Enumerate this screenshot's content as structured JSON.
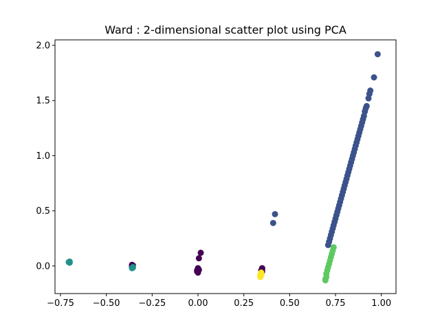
{
  "chart_data": {
    "type": "scatter",
    "title": "Ward : 2-dimensional scatter plot using PCA",
    "xlabel": "",
    "ylabel": "",
    "xlim": [
      -0.78,
      1.08
    ],
    "ylim": [
      -0.25,
      2.05
    ],
    "grid": false,
    "legend": "none",
    "x_ticks": [
      {
        "value": -0.75,
        "label": "−0.75"
      },
      {
        "value": -0.5,
        "label": "−0.50"
      },
      {
        "value": -0.25,
        "label": "−0.25"
      },
      {
        "value": 0.0,
        "label": "0.00"
      },
      {
        "value": 0.25,
        "label": "0.25"
      },
      {
        "value": 0.5,
        "label": "0.50"
      },
      {
        "value": 0.75,
        "label": "0.75"
      },
      {
        "value": 1.0,
        "label": "1.00"
      }
    ],
    "y_ticks": [
      {
        "value": 0.0,
        "label": "0.0"
      },
      {
        "value": 0.5,
        "label": "0.5"
      },
      {
        "value": 1.0,
        "label": "1.0"
      },
      {
        "value": 1.5,
        "label": "1.5"
      },
      {
        "value": 2.0,
        "label": "2.0"
      }
    ],
    "series": [
      {
        "color": "#440154",
        "points": [
          [
            -0.36,
            0.01
          ],
          [
            -0.36,
            0.0
          ],
          [
            -0.36,
            -0.01
          ],
          [
            -0.355,
            0.005
          ],
          [
            0.0,
            -0.02
          ],
          [
            0.0,
            -0.03
          ],
          [
            -0.005,
            -0.04
          ],
          [
            -0.005,
            -0.05
          ],
          [
            0.0,
            -0.06
          ],
          [
            0.005,
            -0.035
          ],
          [
            0.005,
            0.07
          ],
          [
            0.015,
            0.12
          ],
          [
            0.35,
            -0.02
          ],
          [
            0.35,
            -0.03
          ],
          [
            0.345,
            -0.04
          ],
          [
            0.35,
            -0.05
          ]
        ]
      },
      {
        "color": "#3b528b",
        "points": [
          [
            0.98,
            1.92
          ],
          [
            0.96,
            1.71
          ],
          [
            0.94,
            1.59
          ],
          [
            0.935,
            1.56
          ],
          [
            0.93,
            1.52
          ],
          [
            0.92,
            1.45
          ],
          [
            0.915,
            1.43
          ],
          [
            0.91,
            1.4
          ],
          [
            0.905,
            1.36
          ],
          [
            0.9,
            1.33
          ],
          [
            0.895,
            1.3
          ],
          [
            0.89,
            1.27
          ],
          [
            0.885,
            1.24
          ],
          [
            0.88,
            1.21
          ],
          [
            0.875,
            1.18
          ],
          [
            0.87,
            1.15
          ],
          [
            0.865,
            1.12
          ],
          [
            0.86,
            1.09
          ],
          [
            0.855,
            1.06
          ],
          [
            0.85,
            1.03
          ],
          [
            0.845,
            1.0
          ],
          [
            0.84,
            0.97
          ],
          [
            0.835,
            0.94
          ],
          [
            0.83,
            0.91
          ],
          [
            0.825,
            0.88
          ],
          [
            0.82,
            0.85
          ],
          [
            0.815,
            0.82
          ],
          [
            0.81,
            0.79
          ],
          [
            0.805,
            0.76
          ],
          [
            0.8,
            0.73
          ],
          [
            0.795,
            0.7
          ],
          [
            0.79,
            0.67
          ],
          [
            0.785,
            0.64
          ],
          [
            0.78,
            0.61
          ],
          [
            0.775,
            0.58
          ],
          [
            0.77,
            0.55
          ],
          [
            0.765,
            0.52
          ],
          [
            0.76,
            0.49
          ],
          [
            0.755,
            0.46
          ],
          [
            0.75,
            0.43
          ],
          [
            0.745,
            0.4
          ],
          [
            0.74,
            0.37
          ],
          [
            0.735,
            0.34
          ],
          [
            0.73,
            0.31
          ],
          [
            0.725,
            0.28
          ],
          [
            0.72,
            0.25
          ],
          [
            0.715,
            0.22
          ],
          [
            0.71,
            0.19
          ],
          [
            0.42,
            0.47
          ],
          [
            0.41,
            0.39
          ]
        ]
      },
      {
        "color": "#21918c",
        "points": [
          [
            -0.7,
            0.04
          ],
          [
            -0.7,
            0.03
          ],
          [
            -0.705,
            0.035
          ],
          [
            -0.355,
            -0.01
          ],
          [
            -0.36,
            -0.02
          ],
          [
            -0.355,
            -0.015
          ]
        ]
      },
      {
        "color": "#5ec962",
        "points": [
          [
            0.74,
            0.17
          ],
          [
            0.735,
            0.14
          ],
          [
            0.73,
            0.11
          ],
          [
            0.725,
            0.08
          ],
          [
            0.72,
            0.05
          ],
          [
            0.715,
            0.02
          ],
          [
            0.71,
            -0.01
          ],
          [
            0.705,
            -0.04
          ],
          [
            0.7,
            -0.07
          ],
          [
            0.7,
            -0.1
          ],
          [
            0.695,
            -0.12
          ],
          [
            0.695,
            -0.13
          ]
        ]
      },
      {
        "color": "#fde725",
        "points": [
          [
            0.345,
            -0.06
          ],
          [
            0.345,
            -0.07
          ],
          [
            0.34,
            -0.08
          ],
          [
            0.34,
            -0.09
          ],
          [
            0.34,
            -0.1
          ],
          [
            0.345,
            -0.085
          ]
        ]
      }
    ]
  }
}
